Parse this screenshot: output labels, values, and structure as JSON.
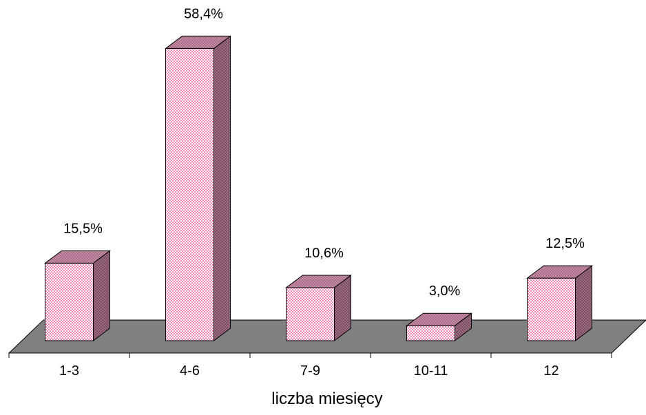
{
  "chart_data": {
    "type": "bar",
    "categories": [
      "1-3",
      "4-6",
      "7-9",
      "10-11",
      "12"
    ],
    "values": [
      15.5,
      58.4,
      10.6,
      3.0,
      12.5
    ],
    "value_labels": [
      "15,5%",
      "58,4%",
      "10,6%",
      "3,0%",
      "12,5%"
    ],
    "xlabel": "liczba miesięcy",
    "ylabel": "",
    "ylim": [
      0,
      60
    ],
    "grid": false,
    "style": "3d-column",
    "colors": {
      "bar_pattern_light": "#ffffff",
      "bar_pattern_dark": "#f08bb8",
      "bar_side_base": "#9c6a80",
      "bar_top_base": "#c48aa4",
      "floor": "#808080",
      "outline": "#000000"
    }
  }
}
